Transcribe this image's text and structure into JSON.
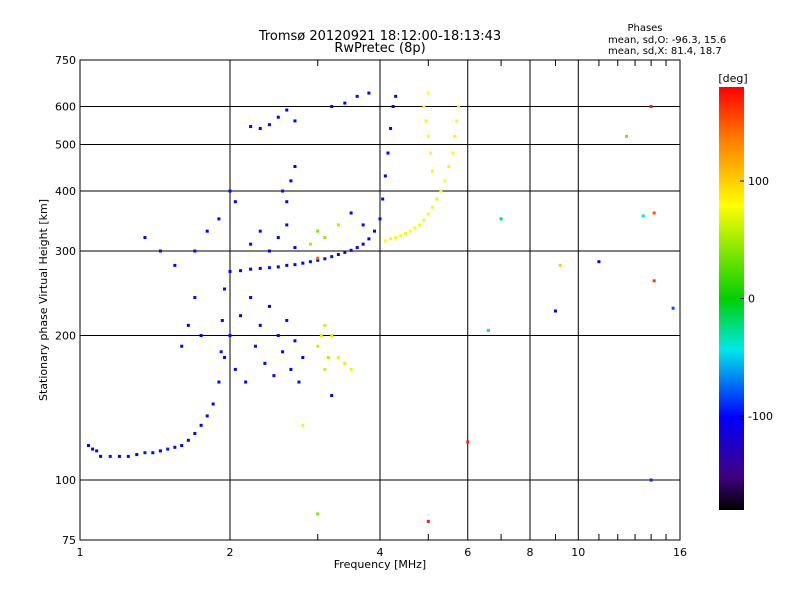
{
  "chart_data": {
    "type": "scatter",
    "title": "Tromsø 20120921 18:12:00-18:13:43",
    "subtitle": "RwPretec (8p)",
    "xlabel": "Frequency [MHz]",
    "ylabel": "Stationary phase Virtual Height [km]",
    "x_scale": "log",
    "y_scale": "log",
    "xlim": [
      1,
      16
    ],
    "ylim": [
      75,
      750
    ],
    "x_ticks": [
      1,
      2,
      4,
      6,
      8,
      10,
      16
    ],
    "x_gridlines": [
      2,
      4,
      6,
      8,
      10
    ],
    "y_ticks": [
      75,
      100,
      200,
      300,
      400,
      500,
      600,
      750
    ],
    "grid": true,
    "colorbar": {
      "label": "[deg]",
      "range": [
        -180,
        180
      ],
      "ticks": [
        100,
        0,
        -100
      ]
    },
    "stats": {
      "heading": "Phases",
      "line_o": "mean, sd,O: -96.3, 15.6",
      "line_x": "mean, sd,X:  81.4, 18.7"
    },
    "series": [
      {
        "polarization": "O",
        "points": [
          [
            1.04,
            118,
            -100
          ],
          [
            1.06,
            116,
            -102
          ],
          [
            1.08,
            115,
            -98
          ],
          [
            1.1,
            112,
            -100
          ],
          [
            1.15,
            112,
            -96
          ],
          [
            1.2,
            112,
            -104
          ],
          [
            1.25,
            112,
            -99
          ],
          [
            1.3,
            113,
            -101
          ],
          [
            1.35,
            114,
            -97
          ],
          [
            1.4,
            114,
            -100
          ],
          [
            1.45,
            115,
            -103
          ],
          [
            1.5,
            116,
            -95
          ],
          [
            1.55,
            117,
            -100
          ],
          [
            1.6,
            118,
            -102
          ],
          [
            1.65,
            121,
            -98
          ],
          [
            1.7,
            125,
            -100
          ],
          [
            1.75,
            130,
            -101
          ],
          [
            1.8,
            136,
            -99
          ],
          [
            1.85,
            144,
            -103
          ],
          [
            1.9,
            160,
            -100
          ],
          [
            1.92,
            185,
            -97
          ],
          [
            1.93,
            215,
            -104
          ],
          [
            1.95,
            250,
            -100
          ],
          [
            2.0,
            272,
            -101
          ],
          [
            2.1,
            273,
            -98
          ],
          [
            2.2,
            275,
            -102
          ],
          [
            2.3,
            276,
            -100
          ],
          [
            2.4,
            277,
            -96
          ],
          [
            2.5,
            278,
            -100
          ],
          [
            2.6,
            280,
            -103
          ],
          [
            2.7,
            281,
            -99
          ],
          [
            2.8,
            283,
            -100
          ],
          [
            2.9,
            285,
            -98
          ],
          [
            3.0,
            287,
            -102
          ],
          [
            3.1,
            289,
            -100
          ],
          [
            3.2,
            292,
            -97
          ],
          [
            3.3,
            295,
            -100
          ],
          [
            3.4,
            298,
            -104
          ],
          [
            3.5,
            301,
            -100
          ],
          [
            3.6,
            305,
            -99
          ],
          [
            3.7,
            310,
            -101
          ],
          [
            3.8,
            318,
            -100
          ],
          [
            3.9,
            330,
            -102
          ],
          [
            4.0,
            350,
            -98
          ],
          [
            4.05,
            385,
            -100
          ],
          [
            4.1,
            430,
            -103
          ],
          [
            4.15,
            480,
            -100
          ],
          [
            4.2,
            540,
            -99
          ],
          [
            4.25,
            600,
            -101
          ],
          [
            4.3,
            630,
            -100
          ],
          [
            1.95,
            180,
            -100
          ],
          [
            2.0,
            200,
            -98
          ],
          [
            2.05,
            170,
            -102
          ],
          [
            2.1,
            220,
            -100
          ],
          [
            2.15,
            160,
            -99
          ],
          [
            2.2,
            240,
            -101
          ],
          [
            2.25,
            190,
            -97
          ],
          [
            2.3,
            210,
            -103
          ],
          [
            2.35,
            175,
            -100
          ],
          [
            2.4,
            230,
            -100
          ],
          [
            2.45,
            165,
            -98
          ],
          [
            2.5,
            200,
            -102
          ],
          [
            2.55,
            185,
            -100
          ],
          [
            2.6,
            215,
            -99
          ],
          [
            2.65,
            170,
            -101
          ],
          [
            2.7,
            195,
            -100
          ],
          [
            2.75,
            160,
            -97
          ],
          [
            2.8,
            180,
            -104
          ],
          [
            2.2,
            310,
            -100
          ],
          [
            2.3,
            330,
            -98
          ],
          [
            2.4,
            300,
            -102
          ],
          [
            2.5,
            320,
            -100
          ],
          [
            2.6,
            340,
            -99
          ],
          [
            2.7,
            305,
            -101
          ],
          [
            2.2,
            545,
            -100
          ],
          [
            2.3,
            540,
            -102
          ],
          [
            2.4,
            550,
            -98
          ],
          [
            2.5,
            570,
            -100
          ],
          [
            2.6,
            590,
            -101
          ],
          [
            2.7,
            560,
            -99
          ],
          [
            2.65,
            420,
            -100
          ],
          [
            2.7,
            450,
            -102
          ],
          [
            2.55,
            400,
            -98
          ],
          [
            2.6,
            380,
            -100
          ],
          [
            3.2,
            600,
            -100
          ],
          [
            3.4,
            610,
            -102
          ],
          [
            3.6,
            630,
            -98
          ],
          [
            3.8,
            640,
            -100
          ],
          [
            3.5,
            360,
            -101
          ],
          [
            3.7,
            340,
            -99
          ],
          [
            1.6,
            190,
            -100
          ],
          [
            1.65,
            210,
            -102
          ],
          [
            1.7,
            240,
            -98
          ],
          [
            1.75,
            200,
            -100
          ],
          [
            1.55,
            280,
            -101
          ],
          [
            1.45,
            300,
            -99
          ],
          [
            1.35,
            320,
            -100
          ],
          [
            1.7,
            300,
            -97
          ],
          [
            1.8,
            330,
            -103
          ],
          [
            1.9,
            350,
            -100
          ],
          [
            2.0,
            400,
            -99
          ],
          [
            2.05,
            380,
            -101
          ]
        ]
      },
      {
        "polarization": "X",
        "points": [
          [
            4.1,
            315,
            80
          ],
          [
            4.2,
            318,
            82
          ],
          [
            4.3,
            320,
            78
          ],
          [
            4.4,
            323,
            81
          ],
          [
            4.5,
            326,
            85
          ],
          [
            4.6,
            330,
            79
          ],
          [
            4.7,
            335,
            82
          ],
          [
            4.8,
            340,
            80
          ],
          [
            4.9,
            348,
            83
          ],
          [
            5.0,
            358,
            78
          ],
          [
            5.1,
            370,
            81
          ],
          [
            5.2,
            385,
            84
          ],
          [
            5.3,
            400,
            80
          ],
          [
            5.4,
            420,
            79
          ],
          [
            5.5,
            450,
            82
          ],
          [
            5.6,
            480,
            80
          ],
          [
            5.65,
            520,
            85
          ],
          [
            5.7,
            560,
            81
          ],
          [
            5.75,
            600,
            78
          ],
          [
            4.9,
            600,
            80
          ],
          [
            4.95,
            560,
            82
          ],
          [
            5.0,
            520,
            79
          ],
          [
            5.05,
            480,
            81
          ],
          [
            5.1,
            440,
            83
          ],
          [
            5.0,
            640,
            80
          ],
          [
            3.0,
            190,
            60
          ],
          [
            3.05,
            200,
            65
          ],
          [
            3.1,
            210,
            62
          ],
          [
            3.15,
            180,
            58
          ],
          [
            3.2,
            200,
            64
          ],
          [
            3.1,
            170,
            61
          ],
          [
            3.3,
            180,
            70
          ],
          [
            3.4,
            175,
            68
          ],
          [
            3.5,
            170,
            72
          ],
          [
            2.9,
            310,
            50
          ],
          [
            3.1,
            320,
            45
          ],
          [
            3.3,
            340,
            55
          ],
          [
            3.0,
            330,
            40
          ],
          [
            2.8,
            130,
            75
          ],
          [
            9.2,
            280,
            100
          ],
          [
            12.5,
            520,
            120
          ]
        ]
      }
    ],
    "isolated_points": [
      [
        3.0,
        85,
        40
      ],
      [
        5.0,
        82,
        170
      ],
      [
        6.0,
        120,
        170
      ],
      [
        7.0,
        350,
        -20
      ],
      [
        6.6,
        205,
        -30
      ],
      [
        9.0,
        225,
        -110
      ],
      [
        11.0,
        285,
        -120
      ],
      [
        14.0,
        600,
        170
      ],
      [
        14.2,
        360,
        150
      ],
      [
        13.5,
        355,
        -40
      ],
      [
        15.5,
        228,
        -80
      ],
      [
        14.0,
        100,
        -90
      ],
      [
        14.2,
        260,
        160
      ],
      [
        3.0,
        290,
        140
      ],
      [
        3.2,
        150,
        -110
      ]
    ]
  }
}
